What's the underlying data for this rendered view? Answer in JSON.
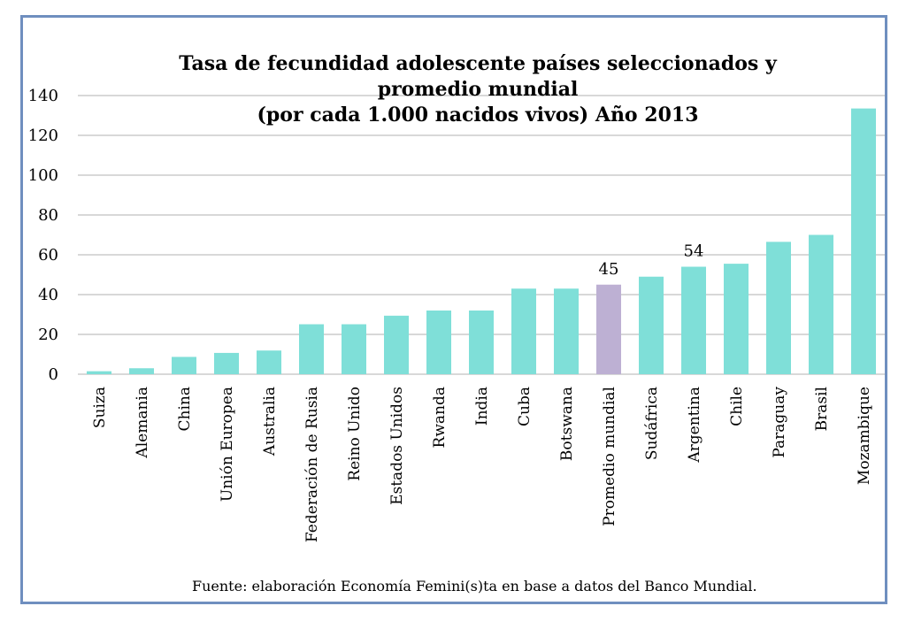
{
  "chart_data": {
    "type": "bar",
    "title": [
      "Tasa de fecundidad adolescente países seleccionados y",
      "promedio mundial",
      "(por cada 1.000 nacidos vivos) Año 2013"
    ],
    "categories": [
      "Suiza",
      "Alemania",
      "China",
      "Unión Europea",
      "Australia",
      "Federación de Rusia",
      "Reino Unido",
      "Estados Unidos",
      "Rwanda",
      "India",
      "Cuba",
      "Botswana",
      "Promedio mundial",
      "Sudáfrica",
      "Argentina",
      "Chile",
      "Paraguay",
      "Brasil",
      "Mozambique"
    ],
    "values": [
      1.5,
      3,
      8.7,
      10.7,
      11.9,
      25.1,
      25.1,
      29.4,
      32,
      32,
      43,
      43,
      45,
      49,
      54,
      55.5,
      66.5,
      70,
      133.5
    ],
    "highlight_index": 12,
    "data_labels": [
      {
        "index": 12,
        "text": "45"
      },
      {
        "index": 14,
        "text": "54"
      }
    ],
    "yticks": [
      0,
      20,
      40,
      60,
      80,
      100,
      120,
      140
    ],
    "ylim": [
      0,
      140
    ],
    "xlabel": "",
    "ylabel": "",
    "grid": true,
    "colors": {
      "bar": "#7fdfd8",
      "highlight": "#bdb0d3",
      "grid": "#cccccc",
      "frame": "#6f8fbf"
    }
  },
  "source": "Fuente: elaboración Economía Femini(s)ta en base a datos del Banco Mundial."
}
